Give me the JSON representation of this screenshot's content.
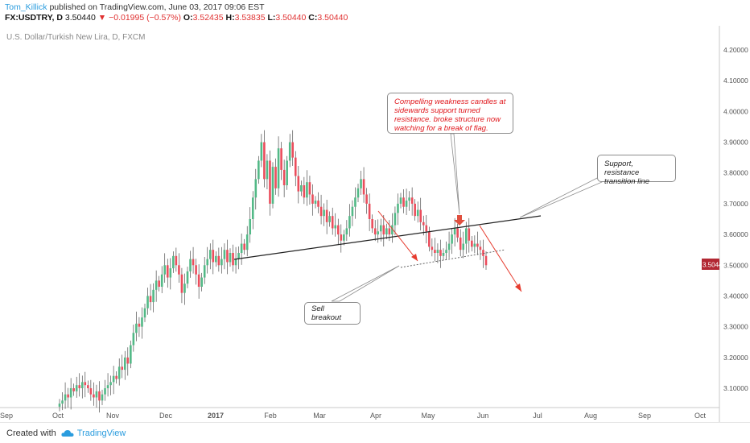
{
  "header": {
    "author": "Tom_Killick",
    "published": "published on TradingView.com, June 03, 2017 09:06 EST",
    "symbol": "FX:USDTRY, D",
    "last": "3.50440",
    "change": "−0.01995 (−0.57%)",
    "o_label": "O:",
    "o": "3.52435",
    "h_label": "H:",
    "h": "3.53835",
    "l_label": "L:",
    "l": "3.50440",
    "c_label": "C:",
    "c": "3.50440"
  },
  "chart_title": "U.S. Dollar/Turkish New Lira, D, FXCM",
  "price_tag": "3.50440",
  "annotations": {
    "weakness": "Compelling weakness candles at sidewards support turned resistance. broke structure now watching for a break of flag.",
    "support": "Support, resistance transition line",
    "sell": "Sell breakout"
  },
  "footer": {
    "created": "Created with",
    "brand": "TradingView"
  },
  "colors": {
    "up": "#53b987",
    "down": "#eb4d5c",
    "accent": "#2a9cde",
    "price_tag_bg": "#b22833",
    "arrow": "#e63b2e",
    "annotation_text": "#e0181d"
  },
  "chart_data": {
    "type": "candlestick",
    "title": "U.S. Dollar/Turkish New Lira, D, FXCM",
    "y_ticks": [
      "3.10000",
      "3.20000",
      "3.30000",
      "3.40000",
      "3.50000",
      "3.60000",
      "3.70000",
      "3.80000",
      "3.90000",
      "4.00000",
      "4.10000",
      "4.20000"
    ],
    "ylim": [
      3.02,
      4.28
    ],
    "x_ticks": [
      "Sep",
      "Oct",
      "Nov",
      "Dec",
      "2017",
      "Feb",
      "Mar",
      "Apr",
      "May",
      "Jun",
      "Jul",
      "Aug",
      "Sep",
      "Oct"
    ],
    "grid": false,
    "closes": [
      3.05,
      3.06,
      3.08,
      3.07,
      3.1,
      3.09,
      3.11,
      3.1,
      3.12,
      3.11,
      3.1,
      3.08,
      3.07,
      3.09,
      3.06,
      3.08,
      3.1,
      3.11,
      3.12,
      3.14,
      3.13,
      3.17,
      3.16,
      3.2,
      3.18,
      3.24,
      3.28,
      3.31,
      3.3,
      3.33,
      3.36,
      3.4,
      3.38,
      3.42,
      3.45,
      3.43,
      3.47,
      3.5,
      3.46,
      3.49,
      3.53,
      3.5,
      3.47,
      3.41,
      3.44,
      3.48,
      3.52,
      3.5,
      3.47,
      3.43,
      3.46,
      3.5,
      3.52,
      3.55,
      3.51,
      3.53,
      3.5,
      3.52,
      3.55,
      3.51,
      3.54,
      3.5,
      3.52,
      3.54,
      3.57,
      3.55,
      3.6,
      3.65,
      3.72,
      3.78,
      3.84,
      3.9,
      3.78,
      3.84,
      3.7,
      3.82,
      3.75,
      3.88,
      3.81,
      3.76,
      3.84,
      3.9,
      3.85,
      3.79,
      3.74,
      3.76,
      3.72,
      3.77,
      3.73,
      3.7,
      3.71,
      3.69,
      3.66,
      3.68,
      3.64,
      3.66,
      3.62,
      3.63,
      3.6,
      3.58,
      3.6,
      3.62,
      3.66,
      3.69,
      3.72,
      3.75,
      3.78,
      3.73,
      3.7,
      3.65,
      3.62,
      3.6,
      3.61,
      3.63,
      3.6,
      3.62,
      3.6,
      3.63,
      3.67,
      3.7,
      3.72,
      3.69,
      3.71,
      3.72,
      3.7,
      3.66,
      3.68,
      3.64,
      3.63,
      3.61,
      3.56,
      3.55,
      3.54,
      3.55,
      3.53,
      3.54,
      3.55,
      3.57,
      3.6,
      3.62,
      3.59,
      3.55,
      3.57,
      3.62,
      3.58,
      3.56,
      3.57,
      3.56,
      3.55,
      3.53,
      3.5
    ]
  }
}
